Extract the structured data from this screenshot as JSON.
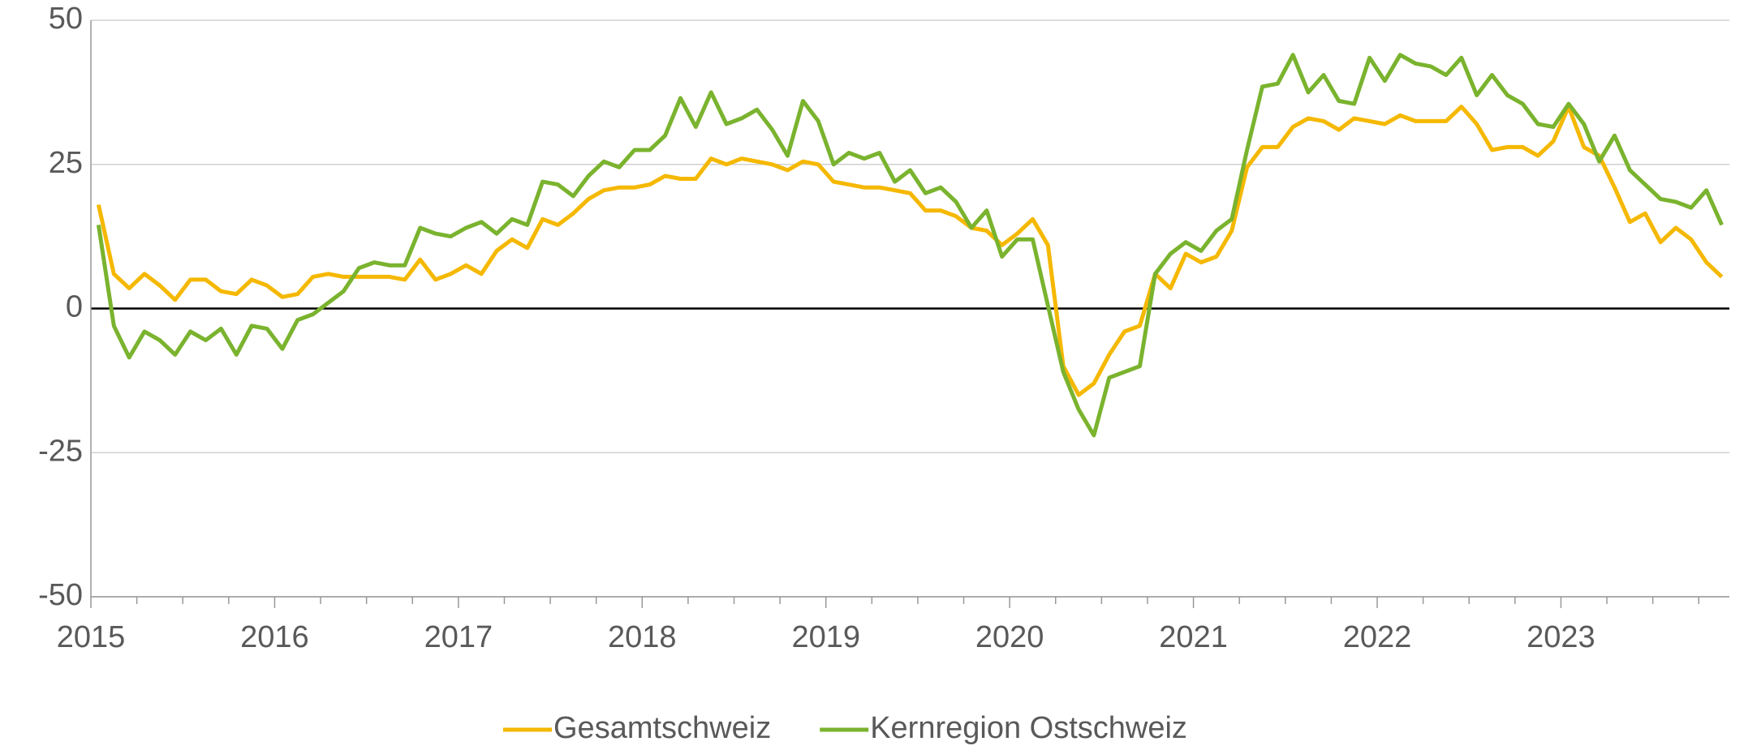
{
  "chart_data": {
    "type": "line",
    "categories": [
      "2015",
      null,
      null,
      null,
      null,
      null,
      null,
      null,
      null,
      null,
      null,
      null,
      "2016",
      null,
      null,
      null,
      null,
      null,
      null,
      null,
      null,
      null,
      null,
      null,
      "2017",
      null,
      null,
      null,
      null,
      null,
      null,
      null,
      null,
      null,
      null,
      null,
      "2018",
      null,
      null,
      null,
      null,
      null,
      null,
      null,
      null,
      null,
      null,
      null,
      "2019",
      null,
      null,
      null,
      null,
      null,
      null,
      null,
      null,
      null,
      null,
      null,
      "2020",
      null,
      null,
      null,
      null,
      null,
      null,
      null,
      null,
      null,
      null,
      null,
      "2021",
      null,
      null,
      null,
      null,
      null,
      null,
      null,
      null,
      null,
      null,
      null,
      "2022",
      null,
      null,
      null,
      null,
      null,
      null,
      null,
      null,
      null,
      null,
      null,
      "2023",
      null,
      null,
      null,
      null,
      null,
      null,
      null,
      null,
      null,
      null
    ],
    "series": [
      {
        "name": "Gesamtschweiz",
        "color": "#f5b800",
        "values": [
          18,
          6,
          3.5,
          6,
          4,
          1.5,
          5,
          5,
          3,
          2.5,
          5,
          4,
          2,
          2.5,
          5.5,
          6,
          5.5,
          5.5,
          5.5,
          5.5,
          5,
          8.5,
          5,
          6,
          7.5,
          6,
          10,
          12,
          10.5,
          15.5,
          14.5,
          16.5,
          19,
          20.5,
          21,
          21,
          21.5,
          23,
          22.5,
          22.5,
          26,
          25,
          26,
          25.5,
          25,
          24,
          25.5,
          25,
          22,
          21.5,
          21,
          21,
          20.5,
          20,
          17,
          17,
          16,
          14,
          13.5,
          11,
          13,
          15.5,
          11,
          -10,
          -15,
          -13,
          -8,
          -4,
          -3,
          6,
          3.5,
          9.5,
          8,
          9,
          13.5,
          24.5,
          28,
          28,
          31.5,
          33,
          32.5,
          31,
          33,
          32.5,
          32,
          33.5,
          32.5,
          32.5,
          32.5,
          35,
          32,
          27.5,
          28,
          28,
          26.5,
          29,
          35,
          28,
          26.5,
          21,
          15,
          16.5,
          11.5,
          14,
          12,
          8,
          5.5
        ]
      },
      {
        "name": "Kernregion Ostschweiz",
        "color": "#7ab32e",
        "values": [
          14.5,
          -3,
          -8.5,
          -4,
          -5.5,
          -8,
          -4,
          -5.5,
          -3.5,
          -8,
          -3,
          -3.5,
          -7,
          -2,
          -1,
          1,
          3,
          7,
          8,
          7.5,
          7.5,
          14,
          13,
          12.5,
          14,
          15,
          13,
          15.5,
          14.5,
          22,
          21.5,
          19.5,
          23,
          25.5,
          24.5,
          27.5,
          27.5,
          30,
          36.5,
          31.5,
          37.5,
          32,
          33,
          34.5,
          31,
          26.5,
          36,
          32.5,
          25,
          27,
          26,
          27,
          22,
          24,
          20,
          21,
          18.5,
          14,
          17,
          9,
          12,
          12,
          0.5,
          -11,
          -17.5,
          -22,
          -12,
          -11,
          -10,
          6,
          9.5,
          11.5,
          10,
          13.5,
          15.5,
          27.5,
          38.5,
          39,
          44,
          37.5,
          40.5,
          36,
          35.5,
          43.5,
          39.5,
          44,
          42.5,
          42,
          40.5,
          43.5,
          37,
          40.5,
          37,
          35.5,
          32,
          31.5,
          35.5,
          32,
          25.5,
          30,
          24,
          21.5,
          19,
          18.5,
          17.5,
          20.5,
          14.5
        ]
      }
    ],
    "ylim": [
      -50,
      50
    ],
    "yticks": [
      -50,
      -25,
      0,
      25,
      50
    ],
    "grid": true,
    "legend": "bottom"
  }
}
